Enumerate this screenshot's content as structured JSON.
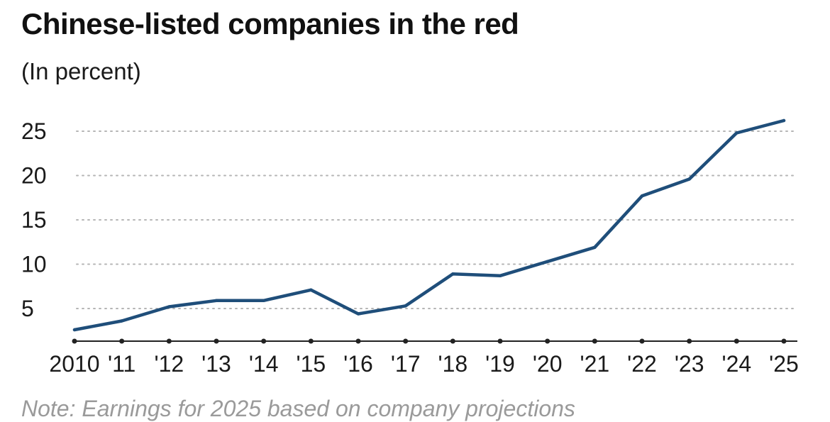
{
  "header": {
    "title": "Chinese-listed companies in the red",
    "subtitle": "(In percent)"
  },
  "footer": {
    "note": "Note: Earnings for 2025 based on company projections"
  },
  "colors": {
    "line": "#1f4e7a",
    "grid": "#b5b5b5",
    "axis": "#222222"
  },
  "chart_data": {
    "type": "line",
    "title": "Chinese-listed companies in the red",
    "subtitle": "(In percent)",
    "xlabel": "",
    "ylabel": "",
    "x": [
      "2010",
      "'11",
      "'12",
      "'13",
      "'14",
      "'15",
      "'16",
      "'17",
      "'18",
      "'19",
      "'20",
      "'21",
      "'22",
      "'23",
      "'24",
      "'25"
    ],
    "series": [
      {
        "values": [
          2.6,
          3.6,
          5.2,
          5.9,
          5.9,
          7.1,
          4.4,
          5.3,
          8.9,
          8.7,
          10.3,
          11.9,
          17.7,
          19.6,
          24.8,
          26.2
        ]
      }
    ],
    "yticks": [
      5,
      10,
      15,
      20,
      25
    ],
    "ylim": [
      1,
      27
    ],
    "grid": true,
    "grid_style": "dotted-horizontal",
    "legend": "none"
  }
}
